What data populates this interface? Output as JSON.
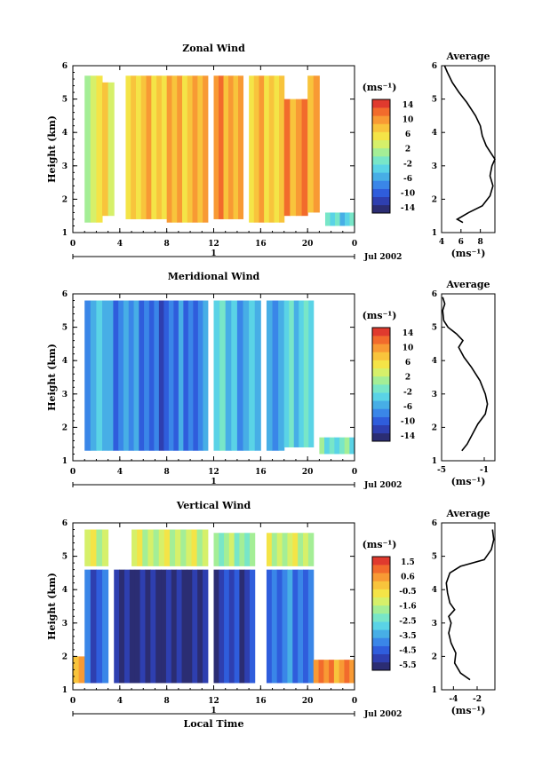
{
  "colormap": [
    "#2b2d73",
    "#2e3fb0",
    "#2f5ddc",
    "#3a86e8",
    "#47aee6",
    "#5ad3e6",
    "#78e6c8",
    "#a4ee96",
    "#d6f06a",
    "#f4e447",
    "#f8c43c",
    "#f89a34",
    "#f26b2c",
    "#e03a2e"
  ],
  "chart_data": [
    {
      "type": "heatmap",
      "title": "Zonal Wind",
      "ylabel": "Height (km)",
      "ylim": [
        1,
        6
      ],
      "xlim": [
        0,
        24
      ],
      "xticks": [
        "0",
        "4",
        "8",
        "12",
        "16",
        "20",
        "0"
      ],
      "yticks": [
        "1",
        "2",
        "3",
        "4",
        "5",
        "6"
      ],
      "date_label": "Jul 2002",
      "day_label": "1",
      "colorbar": {
        "unit": "(ms⁻¹)",
        "ticks": [
          "14",
          "10",
          "6",
          "2",
          "-2",
          "-6",
          "-10",
          "-14"
        ],
        "min": -14,
        "max": 14
      },
      "data_columns": [
        {
          "t0": 1.0,
          "t1": 2.5,
          "top": 5.7,
          "bottom": 1.3,
          "level": 3
        },
        {
          "t0": 2.5,
          "t1": 3.5,
          "top": 5.5,
          "bottom": 1.5,
          "level": 5
        },
        {
          "t0": 4.5,
          "t1": 8.0,
          "top": 5.7,
          "bottom": 1.4,
          "level": 6
        },
        {
          "t0": 8.0,
          "t1": 11.5,
          "top": 5.7,
          "bottom": 1.3,
          "level": 7
        },
        {
          "t0": 12.0,
          "t1": 14.5,
          "top": 5.7,
          "bottom": 1.4,
          "level": 8
        },
        {
          "t0": 15.0,
          "t1": 18.0,
          "top": 5.7,
          "bottom": 1.3,
          "level": 6
        },
        {
          "t0": 18.0,
          "t1": 20.0,
          "top": 5.0,
          "bottom": 1.5,
          "level": 9
        },
        {
          "t0": 20.0,
          "t1": 21.0,
          "top": 5.7,
          "bottom": 1.6,
          "level": 8
        },
        {
          "t0": 21.5,
          "t1": 24.0,
          "top": 1.6,
          "bottom": 1.2,
          "level": -3
        }
      ],
      "profile": {
        "title": "Average",
        "xlabel": "(ms⁻¹)",
        "xlim": [
          4,
          9.5
        ],
        "xticks": [
          "4",
          "6",
          "8"
        ],
        "ylim": [
          1,
          6
        ],
        "yticks": [
          "1",
          "2",
          "3",
          "4",
          "5",
          "6"
        ],
        "x": [
          6.2,
          5.6,
          6.8,
          8.2,
          9.0,
          9.3,
          9.0,
          9.2,
          9.5,
          8.6,
          8.2,
          8.0,
          7.5,
          6.6,
          5.8,
          5.1,
          4.6,
          4.3
        ],
        "y": [
          1.3,
          1.4,
          1.6,
          1.8,
          2.1,
          2.4,
          2.7,
          3.0,
          3.2,
          3.6,
          3.9,
          4.2,
          4.5,
          4.9,
          5.2,
          5.5,
          5.8,
          6.0
        ]
      }
    },
    {
      "type": "heatmap",
      "title": "Meridional Wind",
      "ylabel": "Height (km)",
      "ylim": [
        1,
        6
      ],
      "xlim": [
        0,
        24
      ],
      "xticks": [
        "0",
        "4",
        "8",
        "12",
        "16",
        "20",
        "0"
      ],
      "yticks": [
        "1",
        "2",
        "3",
        "4",
        "5",
        "6"
      ],
      "date_label": "Jul 2002",
      "day_label": "1",
      "colorbar": {
        "unit": "(ms⁻¹)",
        "ticks": [
          "14",
          "10",
          "6",
          "2",
          "-2",
          "-6",
          "-10",
          "-14"
        ],
        "min": -14,
        "max": 14
      },
      "data_columns": [
        {
          "t0": 1.0,
          "t1": 3.0,
          "top": 5.8,
          "bottom": 1.3,
          "level": -5
        },
        {
          "t0": 3.0,
          "t1": 6.5,
          "top": 5.8,
          "bottom": 1.3,
          "level": -7
        },
        {
          "t0": 6.5,
          "t1": 9.0,
          "top": 5.8,
          "bottom": 1.3,
          "level": -9
        },
        {
          "t0": 9.0,
          "t1": 11.5,
          "top": 5.8,
          "bottom": 1.3,
          "level": -8
        },
        {
          "t0": 12.0,
          "t1": 14.0,
          "top": 5.8,
          "bottom": 1.3,
          "level": -4
        },
        {
          "t0": 14.0,
          "t1": 16.0,
          "top": 5.8,
          "bottom": 1.3,
          "level": -5
        },
        {
          "t0": 16.5,
          "t1": 18.0,
          "top": 5.8,
          "bottom": 1.3,
          "level": -6
        },
        {
          "t0": 18.0,
          "t1": 20.5,
          "top": 5.8,
          "bottom": 1.4,
          "level": -3
        },
        {
          "t0": 21.0,
          "t1": 24.0,
          "top": 1.7,
          "bottom": 1.2,
          "level": -2
        }
      ],
      "profile": {
        "title": "Average",
        "xlabel": "(ms⁻¹)",
        "xlim": [
          -5,
          0
        ],
        "xticks": [
          "-5",
          "-1"
        ],
        "ylim": [
          1,
          6
        ],
        "yticks": [
          "1",
          "2",
          "3",
          "4",
          "5",
          "6"
        ],
        "x": [
          -3.1,
          -2.6,
          -2.1,
          -1.6,
          -0.9,
          -0.7,
          -0.9,
          -1.4,
          -2.2,
          -2.9,
          -3.4,
          -3.0,
          -3.6,
          -4.4,
          -4.8,
          -4.9,
          -4.7,
          -4.9
        ],
        "y": [
          1.3,
          1.5,
          1.8,
          2.1,
          2.4,
          2.7,
          3.0,
          3.4,
          3.8,
          4.1,
          4.4,
          4.6,
          4.8,
          5.0,
          5.2,
          5.5,
          5.7,
          5.9
        ]
      }
    },
    {
      "type": "heatmap",
      "title": "Vertical Wind",
      "ylabel": "Height (km)",
      "ylim": [
        1,
        6
      ],
      "xlim": [
        0,
        24
      ],
      "xticks": [
        "0",
        "4",
        "8",
        "12",
        "16",
        "20",
        "0"
      ],
      "yticks": [
        "1",
        "2",
        "3",
        "4",
        "5",
        "6"
      ],
      "date_label": "Jul 2002",
      "day_label": "1",
      "xlabel": "Local Time",
      "colorbar": {
        "unit": "(ms⁻¹)",
        "ticks": [
          "1.5",
          "0.6",
          "-0.5",
          "-1.6",
          "-2.5",
          "-3.5",
          "-4.5",
          "-5.5"
        ],
        "min": -5.5,
        "max": 1.5
      },
      "data_columns": [
        {
          "t0": 0.0,
          "t1": 1.0,
          "top": 2.0,
          "bottom": 1.2,
          "level": 0.3
        },
        {
          "t0": 1.0,
          "t1": 3.0,
          "top": 4.6,
          "bottom": 1.2,
          "level": -4.2
        },
        {
          "t0": 1.0,
          "t1": 3.0,
          "top": 5.8,
          "bottom": 4.7,
          "level": -1.2
        },
        {
          "t0": 3.5,
          "t1": 11.5,
          "top": 4.6,
          "bottom": 1.2,
          "level": -5.2
        },
        {
          "t0": 5.0,
          "t1": 11.5,
          "top": 5.8,
          "bottom": 4.7,
          "level": -1.5
        },
        {
          "t0": 12.0,
          "t1": 15.5,
          "top": 4.6,
          "bottom": 1.2,
          "level": -4.6
        },
        {
          "t0": 12.0,
          "t1": 15.5,
          "top": 5.7,
          "bottom": 4.7,
          "level": -1.8
        },
        {
          "t0": 16.5,
          "t1": 20.5,
          "top": 4.6,
          "bottom": 1.2,
          "level": -3.8
        },
        {
          "t0": 16.5,
          "t1": 20.5,
          "top": 5.7,
          "bottom": 4.7,
          "level": -1.3
        },
        {
          "t0": 20.5,
          "t1": 24.0,
          "top": 1.9,
          "bottom": 1.2,
          "level": 0.4
        }
      ],
      "profile": {
        "title": "Average",
        "xlabel": "(ms⁻¹)",
        "xlim": [
          -5,
          -0.5
        ],
        "xticks": [
          "-4",
          "-2"
        ],
        "ylim": [
          1,
          6
        ],
        "yticks": [
          "1",
          "2",
          "3",
          "4",
          "5",
          "6"
        ],
        "x": [
          -2.6,
          -3.4,
          -3.9,
          -3.8,
          -4.2,
          -4.4,
          -4.2,
          -4.4,
          -3.9,
          -4.3,
          -4.5,
          -4.6,
          -4.3,
          -3.4,
          -1.4,
          -0.8,
          -0.6,
          -0.7
        ],
        "y": [
          1.3,
          1.5,
          1.8,
          2.1,
          2.4,
          2.7,
          3.0,
          3.2,
          3.4,
          3.6,
          3.9,
          4.2,
          4.5,
          4.7,
          4.9,
          5.2,
          5.5,
          5.8
        ]
      }
    }
  ]
}
